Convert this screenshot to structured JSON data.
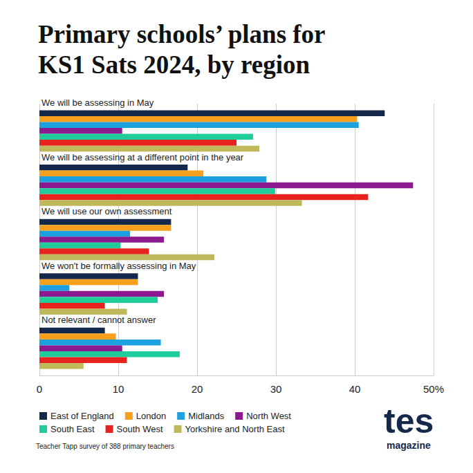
{
  "chart_data": {
    "type": "bar",
    "orientation": "horizontal",
    "title": "Primary schools’ plans for KS1 Sats 2024, by region",
    "source": "Teacher Tapp survey of 388 primary teachers",
    "brand": [
      "tes",
      "magazine"
    ],
    "categories": [
      "We will be assessing in May",
      "We will be assessing at a different point in the year",
      "We will use our own assessment",
      "We won't be formally assessing in May",
      "Not relevant / cannot answer"
    ],
    "series": [
      {
        "name": "East of England",
        "color": "#14284b",
        "values": [
          43.8,
          18.8,
          16.7,
          12.5,
          8.3
        ]
      },
      {
        "name": "London",
        "color": "#f7a01d",
        "values": [
          40.3,
          20.8,
          16.7,
          12.5,
          9.7
        ]
      },
      {
        "name": "Midlands",
        "color": "#1ca0e0",
        "values": [
          40.5,
          28.8,
          11.5,
          3.8,
          15.4
        ]
      },
      {
        "name": "North West",
        "color": "#8b1a8f",
        "values": [
          10.5,
          47.4,
          15.8,
          15.8,
          10.5
        ]
      },
      {
        "name": "South East",
        "color": "#1fcc9a",
        "values": [
          27.1,
          29.9,
          10.3,
          15.0,
          17.8
        ]
      },
      {
        "name": "South West",
        "color": "#e8221f",
        "values": [
          25.0,
          41.7,
          13.9,
          8.3,
          11.1
        ]
      },
      {
        "name": "Yorkshire and North East",
        "color": "#c0b95c",
        "values": [
          27.9,
          33.3,
          22.2,
          11.1,
          5.6
        ]
      }
    ],
    "xlim": [
      0,
      50
    ],
    "xticks": [
      0,
      10,
      20,
      30,
      40,
      {
        "value": 50,
        "label": "50%"
      }
    ],
    "grid": true,
    "legend": "bottom"
  }
}
